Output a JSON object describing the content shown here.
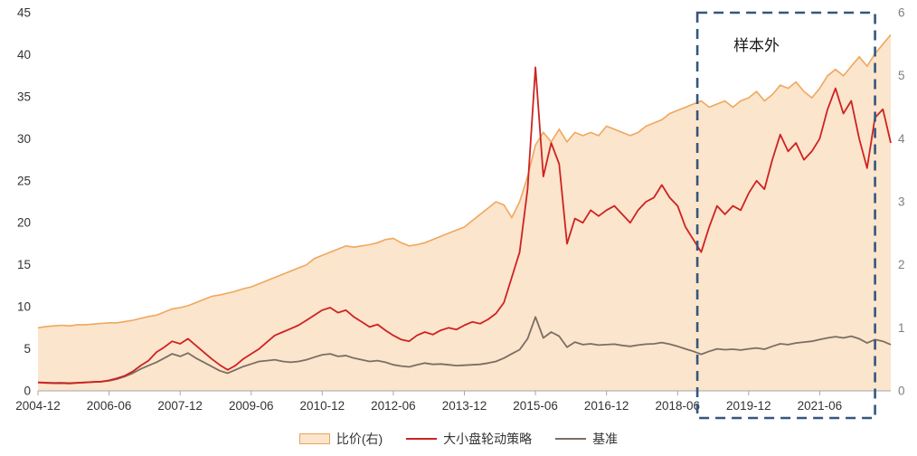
{
  "chart_data": {
    "type": "area+line",
    "title": "",
    "x_step_months": 2,
    "x_start_label": "2004-12",
    "x_ticks": [
      {
        "m": 0,
        "label": "2004-12"
      },
      {
        "m": 18,
        "label": "2006-06"
      },
      {
        "m": 36,
        "label": "2007-12"
      },
      {
        "m": 54,
        "label": "2009-06"
      },
      {
        "m": 72,
        "label": "2010-12"
      },
      {
        "m": 90,
        "label": "2012-06"
      },
      {
        "m": 108,
        "label": "2013-12"
      },
      {
        "m": 126,
        "label": "2015-06"
      },
      {
        "m": 144,
        "label": "2016-12"
      },
      {
        "m": 162,
        "label": "2018-06"
      },
      {
        "m": 180,
        "label": "2019-12"
      },
      {
        "m": 198,
        "label": "2021-06"
      }
    ],
    "left_axis": {
      "min": 0,
      "max": 45,
      "step": 5,
      "color": "#333333"
    },
    "right_axis": {
      "min": 0,
      "max": 6,
      "step": 1,
      "color": "#7F7F7F"
    },
    "grid": false,
    "legend_position": "bottom",
    "series": [
      {
        "key": "ratio",
        "name": "比价(右)",
        "type": "area",
        "axis": "right",
        "color": "#EFA75E",
        "fill": "#FBE5CC",
        "values": [
          1.0,
          1.02,
          1.03,
          1.04,
          1.03,
          1.05,
          1.05,
          1.06,
          1.07,
          1.08,
          1.08,
          1.1,
          1.12,
          1.15,
          1.18,
          1.2,
          1.25,
          1.3,
          1.32,
          1.35,
          1.4,
          1.45,
          1.5,
          1.52,
          1.55,
          1.58,
          1.62,
          1.65,
          1.7,
          1.75,
          1.8,
          1.85,
          1.9,
          1.95,
          2.0,
          2.1,
          2.15,
          2.2,
          2.25,
          2.3,
          2.28,
          2.3,
          2.32,
          2.35,
          2.4,
          2.42,
          2.35,
          2.3,
          2.32,
          2.35,
          2.4,
          2.45,
          2.5,
          2.55,
          2.6,
          2.7,
          2.8,
          2.9,
          3.0,
          2.95,
          2.75,
          3.0,
          3.4,
          3.9,
          4.1,
          3.95,
          4.15,
          3.95,
          4.1,
          4.05,
          4.1,
          4.05,
          4.2,
          4.15,
          4.1,
          4.05,
          4.1,
          4.2,
          4.25,
          4.3,
          4.4,
          4.45,
          4.5,
          4.55,
          4.6,
          4.5,
          4.55,
          4.6,
          4.5,
          4.6,
          4.65,
          4.75,
          4.6,
          4.7,
          4.85,
          4.8,
          4.9,
          4.75,
          4.65,
          4.8,
          5.0,
          5.1,
          5.0,
          5.15,
          5.3,
          5.15,
          5.35,
          5.5,
          5.65
        ]
      },
      {
        "key": "strategy",
        "name": "大小盘轮动策略",
        "type": "line",
        "axis": "left",
        "color": "#CE2222",
        "values": [
          1.0,
          0.95,
          0.9,
          0.92,
          0.88,
          0.95,
          1.0,
          1.05,
          1.1,
          1.25,
          1.5,
          1.8,
          2.3,
          3.0,
          3.6,
          4.6,
          5.2,
          5.9,
          5.6,
          6.2,
          5.4,
          4.6,
          3.8,
          3.1,
          2.5,
          3.0,
          3.8,
          4.4,
          5.0,
          5.8,
          6.6,
          7.0,
          7.4,
          7.8,
          8.4,
          9.0,
          9.6,
          9.9,
          9.3,
          9.6,
          8.8,
          8.2,
          7.6,
          7.9,
          7.2,
          6.6,
          6.1,
          5.9,
          6.6,
          7.0,
          6.7,
          7.2,
          7.5,
          7.3,
          7.8,
          8.2,
          8.0,
          8.5,
          9.2,
          10.5,
          13.5,
          16.5,
          24.0,
          38.5,
          25.5,
          29.5,
          27.0,
          17.5,
          20.5,
          20.0,
          21.5,
          20.8,
          21.5,
          22.0,
          21.0,
          20.0,
          21.5,
          22.5,
          23.0,
          24.5,
          23.0,
          22.0,
          19.5,
          18.0,
          16.5,
          19.5,
          22.0,
          21.0,
          22.0,
          21.5,
          23.5,
          25.0,
          24.0,
          27.5,
          30.5,
          28.5,
          29.5,
          27.5,
          28.5,
          30.0,
          33.5,
          36.0,
          33.0,
          34.5,
          30.0,
          26.5,
          32.5,
          33.5,
          29.5
        ]
      },
      {
        "key": "benchmark",
        "name": "基准",
        "type": "line",
        "axis": "left",
        "color": "#7C6E64",
        "values": [
          1.0,
          0.98,
          0.95,
          0.97,
          0.93,
          0.97,
          1.0,
          1.05,
          1.1,
          1.2,
          1.4,
          1.7,
          2.1,
          2.6,
          3.0,
          3.4,
          3.9,
          4.4,
          4.1,
          4.5,
          3.9,
          3.4,
          2.9,
          2.4,
          2.1,
          2.5,
          2.9,
          3.2,
          3.5,
          3.6,
          3.7,
          3.5,
          3.4,
          3.5,
          3.7,
          4.0,
          4.3,
          4.4,
          4.1,
          4.2,
          3.9,
          3.7,
          3.5,
          3.6,
          3.4,
          3.1,
          2.95,
          2.85,
          3.1,
          3.3,
          3.15,
          3.2,
          3.1,
          3.0,
          3.05,
          3.1,
          3.15,
          3.3,
          3.5,
          3.9,
          4.4,
          4.9,
          6.2,
          8.8,
          6.3,
          7.0,
          6.5,
          5.2,
          5.8,
          5.5,
          5.6,
          5.45,
          5.5,
          5.55,
          5.4,
          5.3,
          5.45,
          5.55,
          5.6,
          5.75,
          5.55,
          5.3,
          5.0,
          4.7,
          4.35,
          4.7,
          5.0,
          4.9,
          4.95,
          4.85,
          5.0,
          5.1,
          4.95,
          5.3,
          5.6,
          5.5,
          5.7,
          5.8,
          5.9,
          6.1,
          6.3,
          6.45,
          6.3,
          6.5,
          6.2,
          5.7,
          6.1,
          5.9,
          5.5
        ]
      }
    ],
    "annotation": {
      "label": "样本外",
      "start_month": 167,
      "end_month": 212,
      "label_month": 182,
      "label_value_left": 40.5,
      "color": "#34567E"
    }
  },
  "legend": {
    "items": [
      "比价(右)",
      "大小盘轮动策略",
      "基准"
    ]
  }
}
